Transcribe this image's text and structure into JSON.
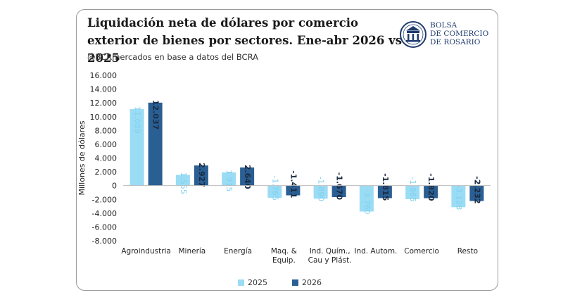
{
  "header": {
    "title": "Liquidación neta de dólares por comercio exterior de bienes por sectores. Ene-abr 2026 vs 2025",
    "subtitle": "@BCRmercados en base a datos del BCRA"
  },
  "logo": {
    "line1": "BOLSA",
    "line2": "DE COMERCIO",
    "line3": "DE ROSARIO",
    "color": "#1f3a6e"
  },
  "chart_data": {
    "type": "bar",
    "ylabel": "Millones de dólares",
    "ylim": [
      -8000,
      16000
    ],
    "ytick_step": 2000,
    "ytick_labels": [
      "16.000",
      "14.000",
      "12.000",
      "10.000",
      "8.000",
      "6.000",
      "4.000",
      "2.000",
      "0",
      "-2.000",
      "-4.000",
      "-6.000",
      "-8.000"
    ],
    "categories": [
      [
        "Agroindustria"
      ],
      [
        "Minería"
      ],
      [
        "Energía"
      ],
      [
        "Maq. &",
        "Equip."
      ],
      [
        "Ind. Quím.,",
        "Cau y Plást."
      ],
      [
        "Ind. Autom."
      ],
      [
        "Comercio"
      ],
      [
        "Resto"
      ]
    ],
    "series": [
      {
        "name": "2025",
        "color": "#9bdcf5",
        "label_color": "#7fd0ee",
        "values": [
          11089,
          1555,
          1915,
          -1765,
          -1890,
          -3760,
          -1965,
          -3128
        ],
        "labels": [
          "11.089",
          "1.555",
          "1.915",
          "-1.765",
          "-1.890",
          "-3.760",
          "-1.965",
          "-3.128"
        ]
      },
      {
        "name": "2026",
        "color": "#2a5f94",
        "label_color": "#1a2a40",
        "values": [
          12037,
          2927,
          2640,
          -1411,
          -1670,
          -1815,
          -1820,
          -2232
        ],
        "labels": [
          "12.037",
          "2.927",
          "2.640",
          "-1.411",
          "-1.670",
          "-1.815",
          "-1.820",
          "-2.232"
        ]
      }
    ],
    "grid": false,
    "legend_position": "bottom"
  }
}
